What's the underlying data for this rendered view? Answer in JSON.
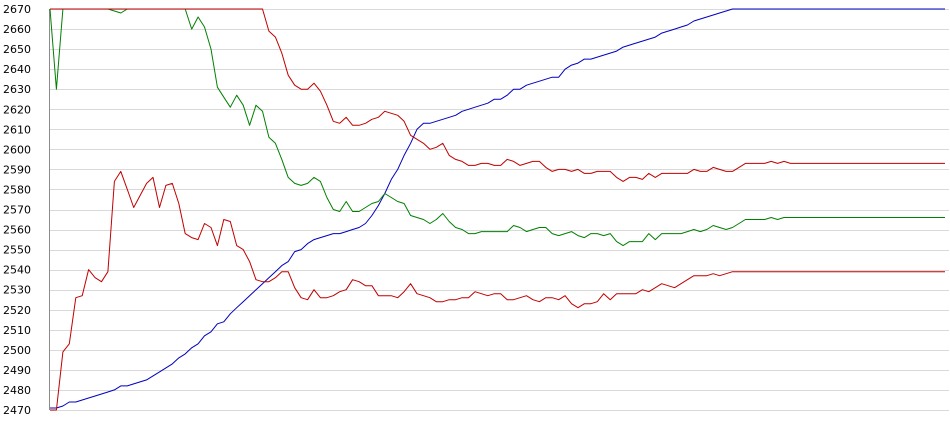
{
  "chart_data": {
    "type": "line",
    "title": "",
    "xlabel": "",
    "ylabel": "",
    "ylim": [
      2470,
      2670
    ],
    "yticks": [
      2470,
      2480,
      2490,
      2500,
      2510,
      2520,
      2530,
      2540,
      2550,
      2560,
      2570,
      2580,
      2590,
      2600,
      2610,
      2620,
      2630,
      2640,
      2650,
      2660,
      2670
    ],
    "grid": true,
    "legend": "none",
    "x": [
      0,
      1,
      2,
      3,
      4,
      5,
      6,
      7,
      8,
      9,
      10,
      11,
      12,
      13,
      14,
      15,
      16,
      17,
      18,
      19,
      20,
      21,
      22,
      23,
      24,
      25,
      26,
      27,
      28,
      29,
      30,
      31,
      32,
      33,
      34,
      35,
      36,
      37,
      38,
      39,
      40,
      41,
      42,
      43,
      44,
      45,
      46,
      47,
      48,
      49,
      50,
      51,
      52,
      53,
      54,
      55,
      56,
      57,
      58,
      59,
      60,
      61,
      62,
      63,
      64,
      65,
      66,
      67,
      68,
      69,
      70,
      71,
      72,
      73,
      74,
      75,
      76,
      77,
      78,
      79,
      80,
      81,
      82,
      83,
      84,
      85,
      86,
      87,
      88,
      89,
      90,
      91,
      92,
      93,
      94,
      95,
      96,
      97,
      98,
      99,
      100,
      101,
      102,
      103,
      104,
      105,
      106,
      107,
      108,
      109,
      110,
      111,
      112,
      113,
      114,
      115,
      116,
      117,
      118,
      119,
      120,
      121,
      122,
      123,
      124,
      125,
      126,
      127,
      128,
      129,
      130,
      131,
      132,
      133,
      134,
      135,
      136,
      137,
      138,
      139
    ],
    "series": [
      {
        "color": "#0000c0",
        "values": [
          2471,
          2471,
          2472,
          2474,
          2474,
          2475,
          2476,
          2477,
          2478,
          2479,
          2480,
          2482,
          2482,
          2483,
          2484,
          2485,
          2487,
          2489,
          2491,
          2493,
          2496,
          2498,
          2501,
          2503,
          2507,
          2509,
          2513,
          2514,
          2518,
          2521,
          2524,
          2527,
          2530,
          2533,
          2536,
          2539,
          2542,
          2544,
          2549,
          2550,
          2553,
          2555,
          2556,
          2557,
          2558,
          2558,
          2559,
          2560,
          2561,
          2563,
          2567,
          2572,
          2578,
          2585,
          2590,
          2597,
          2603,
          2610,
          2613,
          2613,
          2614,
          2615,
          2616,
          2617,
          2619,
          2620,
          2621,
          2622,
          2623,
          2625,
          2625,
          2627,
          2630,
          2630,
          2632,
          2633,
          2634,
          2635,
          2636,
          2636,
          2640,
          2642,
          2643,
          2645,
          2645,
          2646,
          2647,
          2648,
          2649,
          2651,
          2652,
          2653,
          2654,
          2655,
          2656,
          2658,
          2659,
          2660,
          2661,
          2662,
          2664,
          2665,
          2666,
          2667,
          2668,
          2669,
          2670,
          2670,
          2670,
          2670,
          2670,
          2670,
          2670,
          2670,
          2670,
          2670,
          2670,
          2670,
          2670,
          2670,
          2670,
          2670,
          2670,
          2670,
          2670,
          2670,
          2670,
          2670,
          2670,
          2670,
          2670,
          2670,
          2670,
          2670,
          2670,
          2670,
          2670,
          2670,
          2670,
          2670
        ]
      },
      {
        "color": "#008000",
        "values": [
          2670,
          2630,
          2670,
          2670,
          2670,
          2670,
          2670,
          2670,
          2670,
          2670,
          2669,
          2668,
          2670,
          2670,
          2670,
          2670,
          2670,
          2670,
          2670,
          2670,
          2670,
          2670,
          2660,
          2666,
          2661,
          2650,
          2631,
          2626,
          2621,
          2627,
          2622,
          2612,
          2622,
          2619,
          2606,
          2603,
          2595,
          2586,
          2583,
          2582,
          2583,
          2586,
          2584,
          2576,
          2570,
          2569,
          2574,
          2569,
          2569,
          2571,
          2573,
          2574,
          2578,
          2576,
          2574,
          2573,
          2567,
          2566,
          2565,
          2563,
          2565,
          2568,
          2564,
          2561,
          2560,
          2558,
          2558,
          2559,
          2559,
          2559,
          2559,
          2559,
          2562,
          2561,
          2559,
          2560,
          2561,
          2561,
          2558,
          2557,
          2558,
          2559,
          2557,
          2556,
          2558,
          2558,
          2557,
          2558,
          2554,
          2552,
          2554,
          2554,
          2554,
          2558,
          2555,
          2558,
          2558,
          2558,
          2558,
          2559,
          2560,
          2559,
          2560,
          2562,
          2561,
          2560,
          2561,
          2563,
          2565,
          2565,
          2565,
          2565,
          2566,
          2565,
          2566,
          2566,
          2566,
          2566,
          2566,
          2566,
          2566,
          2566,
          2566,
          2566,
          2566,
          2566,
          2566,
          2566,
          2566,
          2566,
          2566,
          2566,
          2566,
          2566,
          2566,
          2566,
          2566,
          2566,
          2566,
          2566
        ]
      },
      {
        "color": "#c00000",
        "values": [
          2670,
          2670,
          2670,
          2670,
          2670,
          2670,
          2670,
          2670,
          2670,
          2670,
          2670,
          2670,
          2670,
          2670,
          2670,
          2670,
          2670,
          2670,
          2670,
          2670,
          2670,
          2670,
          2670,
          2670,
          2670,
          2670,
          2670,
          2670,
          2670,
          2670,
          2670,
          2670,
          2670,
          2670,
          2659,
          2656,
          2648,
          2637,
          2632,
          2630,
          2630,
          2633,
          2629,
          2622,
          2614,
          2613,
          2616,
          2612,
          2612,
          2613,
          2615,
          2616,
          2619,
          2618,
          2617,
          2614,
          2607,
          2605,
          2603,
          2600,
          2601,
          2603,
          2597,
          2595,
          2594,
          2592,
          2592,
          2593,
          2593,
          2592,
          2592,
          2595,
          2594,
          2592,
          2593,
          2594,
          2594,
          2591,
          2589,
          2590,
          2590,
          2589,
          2590,
          2588,
          2588,
          2589,
          2589,
          2589,
          2586,
          2584,
          2586,
          2586,
          2585,
          2588,
          2586,
          2588,
          2588,
          2588,
          2588,
          2588,
          2590,
          2589,
          2589,
          2591,
          2590,
          2589,
          2589,
          2591,
          2593,
          2593,
          2593,
          2593,
          2594,
          2593,
          2594,
          2593,
          2593,
          2593,
          2593,
          2593,
          2593,
          2593,
          2593,
          2593,
          2593,
          2593,
          2593,
          2593,
          2593,
          2593,
          2593,
          2593,
          2593,
          2593,
          2593,
          2593,
          2593,
          2593,
          2593,
          2593
        ]
      },
      {
        "color": "#c00000",
        "values": [
          2470,
          2470,
          2499,
          2503,
          2526,
          2527,
          2540,
          2536,
          2534,
          2539,
          2584,
          2589,
          2580,
          2571,
          2577,
          2583,
          2586,
          2571,
          2582,
          2583,
          2573,
          2558,
          2556,
          2555,
          2563,
          2561,
          2552,
          2565,
          2564,
          2552,
          2550,
          2544,
          2535,
          2534,
          2534,
          2536,
          2539,
          2539,
          2531,
          2526,
          2525,
          2530,
          2526,
          2526,
          2527,
          2529,
          2530,
          2535,
          2534,
          2532,
          2532,
          2527,
          2527,
          2527,
          2526,
          2529,
          2533,
          2528,
          2527,
          2526,
          2524,
          2524,
          2525,
          2525,
          2526,
          2526,
          2529,
          2528,
          2527,
          2528,
          2528,
          2525,
          2525,
          2526,
          2527,
          2525,
          2524,
          2526,
          2526,
          2525,
          2527,
          2523,
          2521,
          2523,
          2523,
          2524,
          2528,
          2525,
          2528,
          2528,
          2528,
          2528,
          2530,
          2529,
          2531,
          2533,
          2532,
          2531,
          2533,
          2535,
          2537,
          2537,
          2537,
          2538,
          2537,
          2538,
          2539,
          2539,
          2539,
          2539,
          2539,
          2539,
          2539,
          2539,
          2539,
          2539,
          2539,
          2539,
          2539,
          2539,
          2539,
          2539,
          2539,
          2539,
          2539,
          2539,
          2539,
          2539,
          2539,
          2539,
          2539,
          2539,
          2539,
          2539,
          2539,
          2539,
          2539,
          2539,
          2539,
          2539
        ]
      }
    ]
  }
}
